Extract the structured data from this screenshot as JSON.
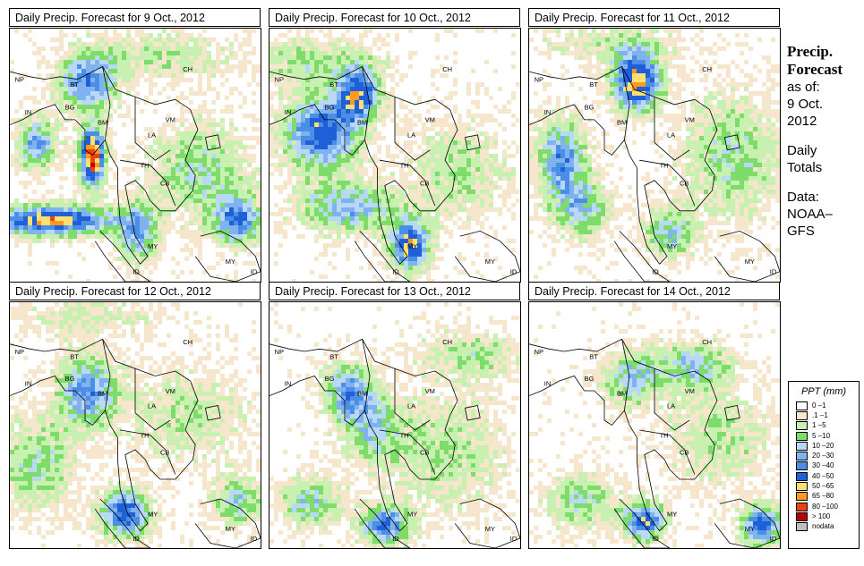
{
  "panels": [
    {
      "title": "Daily Precip. Forecast for  9 Oct., 2012"
    },
    {
      "title": "Daily Precip. Forecast for  10 Oct., 2012"
    },
    {
      "title": "Daily Precip. Forecast for  11 Oct., 2012"
    },
    {
      "title": "Daily Precip. Forecast for  12 Oct., 2012"
    },
    {
      "title": "Daily Precip. Forecast for  13 Oct., 2012"
    },
    {
      "title": "Daily Precip. Forecast for  14 Oct., 2012"
    }
  ],
  "map_labels": [
    "NP",
    "BT",
    "CH",
    "IN",
    "BG",
    "BM",
    "VM",
    "LA",
    "TH",
    "CB",
    "MY",
    "MY",
    "ID",
    "ID"
  ],
  "side": {
    "heading_1": "Precip.",
    "heading_2": "Forecast",
    "line_1": "as of:",
    "line_2": "9 Oct.",
    "line_3": "2012",
    "line_4": "Daily",
    "line_5": "Totals",
    "line_6": "Data:",
    "line_7": "NOAA–",
    "line_8": "GFS"
  },
  "legend": {
    "title": "PPT (mm)",
    "items": [
      {
        "label": "0 –1",
        "color": "#ffffff"
      },
      {
        "label": ".1 –1",
        "color": "#f5e6cc"
      },
      {
        "label": "1 –5",
        "color": "#c8f0b0"
      },
      {
        "label": "5 –10",
        "color": "#7ddc6a"
      },
      {
        "label": "10 –20",
        "color": "#b8d8f8"
      },
      {
        "label": "20 –30",
        "color": "#7fb2ee"
      },
      {
        "label": "30 –40",
        "color": "#4a8ee6"
      },
      {
        "label": "40 –50",
        "color": "#1f5fd8"
      },
      {
        "label": "50 –65",
        "color": "#ffe070"
      },
      {
        "label": "65 –80",
        "color": "#ff9a1e"
      },
      {
        "label": "80 –100",
        "color": "#f04010"
      },
      {
        "label": "> 100",
        "color": "#b80000"
      },
      {
        "label": "nodata",
        "color": "#bfbfbf"
      }
    ]
  }
}
